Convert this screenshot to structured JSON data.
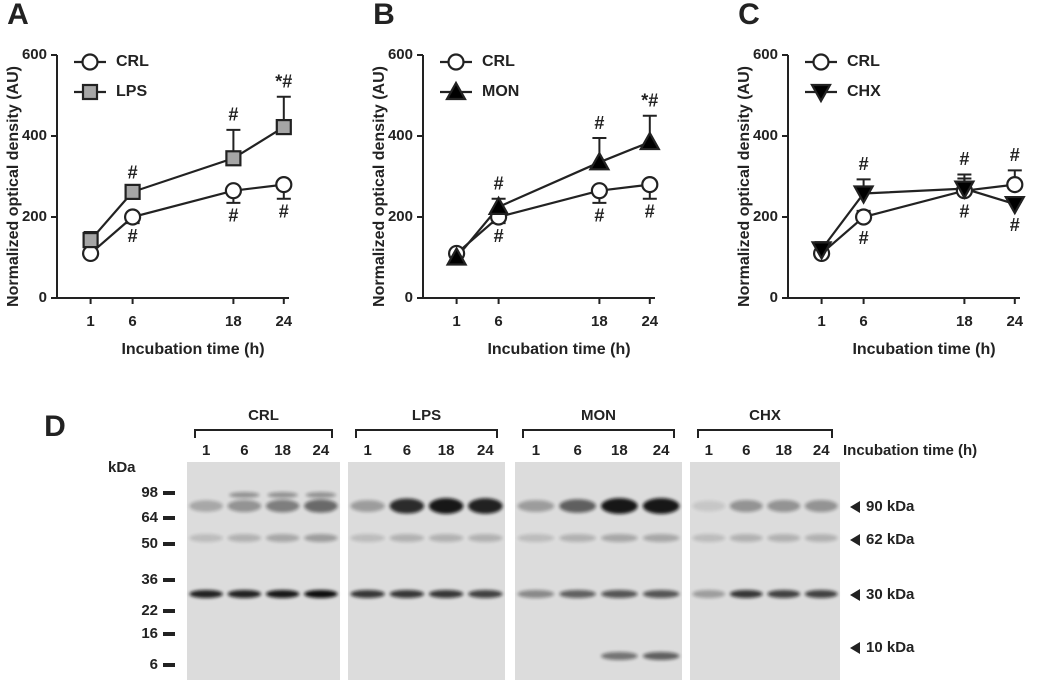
{
  "chart_data": [
    {
      "type": "line",
      "label": "A",
      "ylabel": "Normalized optical density (AU)",
      "xlabel": "Incubation time (h)",
      "x": [
        1,
        6,
        18,
        24
      ],
      "xlim": [
        -3,
        27
      ],
      "xticks": [
        1,
        6,
        18,
        24
      ],
      "ylim": [
        0,
        600
      ],
      "yticks": [
        0,
        200,
        400,
        600
      ],
      "series": [
        {
          "name": "CRL",
          "color": "#ffffff",
          "marker": "circle",
          "error_direction": "down",
          "values": [
            110,
            200,
            265,
            280
          ],
          "errors": [
            10,
            15,
            30,
            35
          ]
        },
        {
          "name": "LPS",
          "color": "#a6a6a6",
          "marker": "square",
          "error_direction": "up",
          "values": [
            143,
            262,
            345,
            422
          ],
          "errors": [
            20,
            10,
            70,
            75
          ]
        }
      ],
      "annotations": [
        {
          "series": 1,
          "index": 1,
          "side": "above",
          "text": "#"
        },
        {
          "series": 1,
          "index": 2,
          "side": "above",
          "text": "#"
        },
        {
          "series": 1,
          "index": 3,
          "side": "above",
          "text": "*#"
        },
        {
          "series": 0,
          "index": 1,
          "side": "below",
          "text": "#"
        },
        {
          "series": 0,
          "index": 2,
          "side": "below",
          "text": "#"
        },
        {
          "series": 0,
          "index": 3,
          "side": "below",
          "text": "#"
        }
      ]
    },
    {
      "type": "line",
      "label": "B",
      "ylabel": "Normalized optical density (AU)",
      "xlabel": "Incubation time (h)",
      "x": [
        1,
        6,
        18,
        24
      ],
      "xlim": [
        -3,
        27
      ],
      "xticks": [
        1,
        6,
        18,
        24
      ],
      "ylim": [
        0,
        600
      ],
      "yticks": [
        0,
        200,
        400,
        600
      ],
      "series": [
        {
          "name": "CRL",
          "color": "#ffffff",
          "marker": "circle",
          "error_direction": "down",
          "values": [
            110,
            200,
            265,
            280
          ],
          "errors": [
            8,
            15,
            30,
            35
          ]
        },
        {
          "name": "MON",
          "color": "#000000",
          "marker": "triangle",
          "error_direction": "up",
          "values": [
            100,
            225,
            335,
            385
          ],
          "errors": [
            5,
            20,
            60,
            65
          ]
        }
      ],
      "annotations": [
        {
          "series": 1,
          "index": 1,
          "side": "above",
          "text": "#"
        },
        {
          "series": 1,
          "index": 2,
          "side": "above",
          "text": "#"
        },
        {
          "series": 1,
          "index": 3,
          "side": "above",
          "text": "*#"
        },
        {
          "series": 0,
          "index": 1,
          "side": "below",
          "text": "#"
        },
        {
          "series": 0,
          "index": 2,
          "side": "below",
          "text": "#"
        },
        {
          "series": 0,
          "index": 3,
          "side": "below",
          "text": "#"
        }
      ]
    },
    {
      "type": "line",
      "label": "C",
      "ylabel": "Normalized optical density (AU)",
      "xlabel": "Incubation time (h)",
      "x": [
        1,
        6,
        18,
        24
      ],
      "xlim": [
        -3,
        27
      ],
      "xticks": [
        1,
        6,
        18,
        24
      ],
      "ylim": [
        0,
        600
      ],
      "yticks": [
        0,
        200,
        400,
        600
      ],
      "series": [
        {
          "name": "CRL",
          "color": "#ffffff",
          "marker": "circle",
          "error_direction": "up",
          "values": [
            110,
            200,
            265,
            280
          ],
          "errors": [
            8,
            15,
            30,
            35
          ]
        },
        {
          "name": "CHX",
          "color": "#000000",
          "marker": "triangle-down",
          "error_direction": "up",
          "values": [
            120,
            258,
            270,
            232
          ],
          "errors": [
            18,
            35,
            35,
            5
          ]
        }
      ],
      "annotations": [
        {
          "series": 1,
          "index": 1,
          "side": "above",
          "text": "#"
        },
        {
          "series": 1,
          "index": 2,
          "side": "above",
          "text": "#"
        },
        {
          "series": 0,
          "index": 3,
          "side": "above",
          "text": "#"
        },
        {
          "series": 0,
          "index": 1,
          "side": "below",
          "text": "#"
        },
        {
          "series": 0,
          "index": 2,
          "side": "below",
          "text": "#"
        },
        {
          "series": 1,
          "index": 3,
          "side": "below",
          "text": "#"
        }
      ]
    }
  ],
  "blot": {
    "label": "D",
    "unit": "kDa",
    "time_label": "Incubation  time (h)",
    "groups": [
      {
        "name": "CRL",
        "lanes": [
          "1",
          "6",
          "18",
          "24"
        ]
      },
      {
        "name": "LPS",
        "lanes": [
          "1",
          "6",
          "18",
          "24"
        ]
      },
      {
        "name": "MON",
        "lanes": [
          "1",
          "6",
          "18",
          "24"
        ]
      },
      {
        "name": "CHX",
        "lanes": [
          "1",
          "6",
          "18",
          "24"
        ]
      }
    ],
    "markers": [
      "98",
      "64",
      "50",
      "36",
      "22",
      "16",
      "6"
    ],
    "bands": [
      "90 kDa",
      "62 kDa",
      "30 kDa",
      "10 kDa"
    ]
  }
}
